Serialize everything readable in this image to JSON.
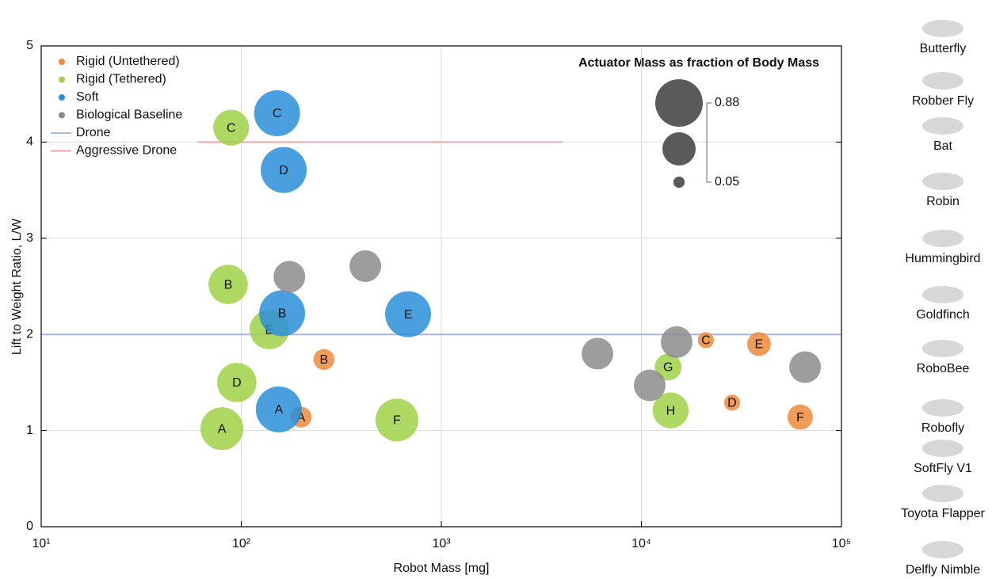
{
  "chart_data": {
    "type": "bubble",
    "xlabel": "Robot Mass [mg]",
    "ylabel": "Lift to Weight Ratio, L/W",
    "xscale": "log",
    "xlim": [
      10,
      100000
    ],
    "xticks": [
      {
        "value": 10,
        "label": "10¹"
      },
      {
        "value": 100,
        "label": "10²"
      },
      {
        "value": 1000,
        "label": "10³"
      },
      {
        "value": 10000,
        "label": "10⁴"
      },
      {
        "value": 100000,
        "label": "10⁵"
      }
    ],
    "ylim": [
      0,
      5
    ],
    "yticks": [
      0,
      1,
      2,
      3,
      4,
      5
    ],
    "grid": true,
    "legend": "upper left",
    "series": [
      {
        "name": "Rigid (Untethered)",
        "color": "#ef8a3c",
        "label_color": "#d2601a",
        "labels": [
          "A",
          "B",
          "C",
          "D",
          "E",
          "F"
        ],
        "x": [
          199,
          259,
          21000,
          28400,
          38700,
          62200
        ],
        "values": [
          1.14,
          1.74,
          1.94,
          1.29,
          1.9,
          1.14
        ],
        "sizes": [
          0.17,
          0.17,
          0.1,
          0.1,
          0.22,
          0.25
        ]
      },
      {
        "name": "Rigid (Tethered)",
        "color": "#9fd146",
        "label_color": "#4c8c1c",
        "labels": [
          "A",
          "B",
          "C",
          "D",
          "E",
          "F",
          "G",
          "H"
        ],
        "x": [
          80,
          86,
          89,
          95,
          138,
          600,
          13600,
          14000
        ],
        "values": [
          1.02,
          2.52,
          4.15,
          1.5,
          2.05,
          1.11,
          1.66,
          1.21
        ],
        "sizes": [
          0.71,
          0.6,
          0.5,
          0.6,
          0.6,
          0.71,
          0.28,
          0.5
        ]
      },
      {
        "name": "Soft",
        "color": "#2a8fd8",
        "label_color": "#163f78",
        "labels": [
          "A",
          "B",
          "C",
          "D",
          "E"
        ],
        "x": [
          154,
          160,
          151,
          163,
          682
        ],
        "values": [
          1.22,
          2.22,
          4.3,
          3.71,
          2.21
        ],
        "sizes": [
          0.82,
          0.82,
          0.82,
          0.82,
          0.82
        ]
      },
      {
        "name": "Biological Baseline",
        "color": "#8c8c8c",
        "x": [
          174,
          417,
          6030,
          11000,
          15000,
          65800
        ],
        "values": [
          2.6,
          2.71,
          1.8,
          1.47,
          1.92,
          1.66
        ],
        "sizes": [
          0.39,
          0.39,
          0.39,
          0.39,
          0.39,
          0.39
        ]
      }
    ],
    "reference_lines": [
      {
        "name": "Drone",
        "color": "#a9b4f5",
        "y": 2
      },
      {
        "name": "Aggressive Drone",
        "color": "#f4a6a6",
        "y": 4,
        "xrange": [
          61,
          4040
        ]
      }
    ],
    "size_legend_title": "Actuator Mass as fraction of Body Mass",
    "size_legend_values": [
      0.88,
      0.43,
      0.05
    ],
    "size_legend_ticks": [
      0.88,
      0.05
    ],
    "size_legend_color": "#5a5a5a",
    "side_panel": [
      "Butterfly",
      "Robber Fly",
      "Bat",
      "Robin",
      "Hummingbird",
      "Goldfinch",
      "RoboBee",
      "Robofly",
      "SoftFly V1",
      "Toyota Flapper",
      "Delfly Nimble"
    ]
  }
}
